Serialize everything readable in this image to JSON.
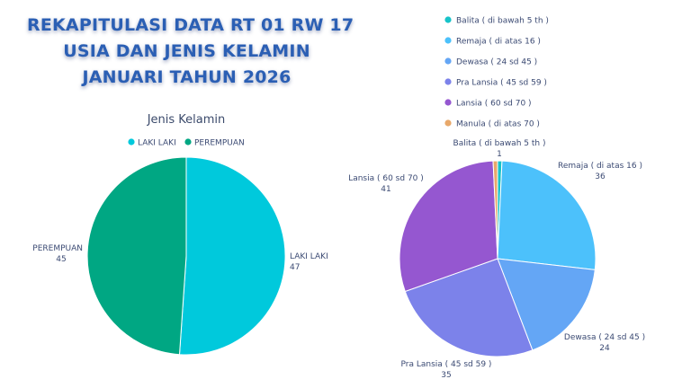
{
  "header": {
    "title_lines": [
      "REKAPITULASI DATA RT 01 RW 17",
      "USIA DAN JENIS KELAMIN",
      "JANUARI TAHUN 2026"
    ]
  },
  "chart_data": [
    {
      "type": "pie",
      "title": "Jenis Kelamin",
      "legend_position": "top",
      "categories": [
        "LAKI LAKI",
        "PEREMPUAN"
      ],
      "values": [
        47,
        45
      ],
      "colors": [
        "#00c9dc",
        "#00a783"
      ]
    },
    {
      "type": "pie",
      "title": "",
      "legend_position": "top-left",
      "categories": [
        "Balita ( di bawah 5 th )",
        "Remaja ( di atas 16 )",
        "Dewasa ( 24 sd 45 )",
        "Pra Lansia ( 45 sd 59 )",
        "Lansia ( 60 sd 70 )",
        "Manula ( di atas 70 )"
      ],
      "values": [
        1,
        36,
        24,
        35,
        41,
        1
      ],
      "colors": [
        "#17c3c9",
        "#4cc1fb",
        "#64a6f5",
        "#7c82ea",
        "#9557d0",
        "#e8a86a"
      ]
    }
  ]
}
